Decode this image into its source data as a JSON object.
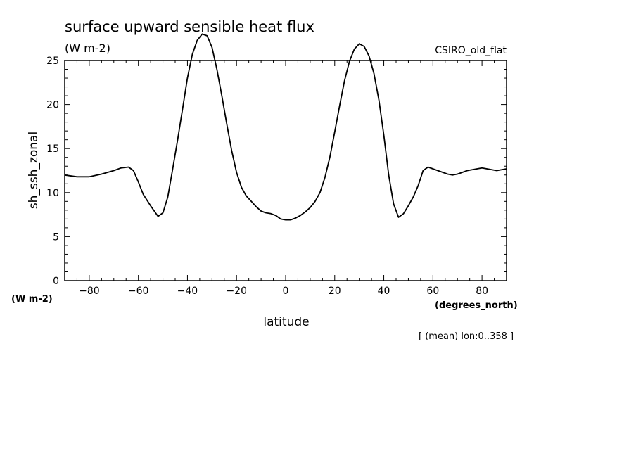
{
  "chart_data": {
    "type": "line",
    "title": "surface upward sensible heat flux",
    "subtitle": "(W m-2)",
    "model_label": "CSIRO_old_flat",
    "xlabel": "latitude",
    "x_units": "(degrees_north)",
    "ylabel": "sh_ssh_zonal",
    "y_units": "(W m-2)",
    "footnote": "[ (mean) lon:0..358 ]",
    "xlim": [
      -90,
      90
    ],
    "ylim": [
      0,
      25
    ],
    "x_ticks": [
      -80,
      -60,
      -40,
      -20,
      0,
      20,
      40,
      60,
      80
    ],
    "x_tick_labels": [
      "−80",
      "−60",
      "−40",
      "−20",
      "0",
      "20",
      "40",
      "60",
      "80"
    ],
    "y_ticks": [
      0,
      5,
      10,
      15,
      20,
      25
    ],
    "y_tick_labels": [
      "0",
      "5",
      "10",
      "15",
      "20",
      "25"
    ],
    "grid": false,
    "series": [
      {
        "x": [
          -90,
          -85,
          -80,
          -75,
          -70,
          -67,
          -64,
          -62,
          -60,
          -58,
          -55,
          -52,
          -50,
          -48,
          -46,
          -44,
          -42,
          -40,
          -38,
          -36,
          -34,
          -32,
          -30,
          -28,
          -26,
          -24,
          -22,
          -20,
          -18,
          -16,
          -14,
          -12,
          -10,
          -8,
          -6,
          -4,
          -2,
          0,
          2,
          4,
          6,
          8,
          10,
          12,
          14,
          16,
          18,
          20,
          22,
          24,
          26,
          28,
          30,
          32,
          34,
          36,
          38,
          40,
          42,
          44,
          46,
          48,
          50,
          52,
          54,
          56,
          58,
          60,
          62,
          64,
          66,
          68,
          70,
          72,
          74,
          76,
          78,
          80,
          82,
          84,
          86,
          88,
          90
        ],
        "y": [
          12.0,
          11.8,
          11.8,
          12.1,
          12.5,
          12.8,
          12.9,
          12.5,
          11.2,
          9.8,
          8.5,
          7.3,
          7.7,
          9.5,
          12.7,
          16.0,
          19.5,
          23.0,
          25.7,
          27.3,
          28.0,
          27.8,
          26.5,
          24.0,
          21.0,
          17.8,
          14.8,
          12.3,
          10.6,
          9.6,
          9.0,
          8.4,
          7.9,
          7.7,
          7.6,
          7.4,
          7.0,
          6.9,
          6.9,
          7.1,
          7.4,
          7.8,
          8.3,
          9.0,
          10.0,
          11.7,
          14.0,
          16.9,
          19.9,
          22.7,
          24.9,
          26.3,
          26.9,
          26.6,
          25.5,
          23.5,
          20.5,
          16.5,
          12.0,
          8.7,
          7.2,
          7.6,
          8.5,
          9.5,
          10.8,
          12.5,
          12.9,
          12.7,
          12.5,
          12.3,
          12.1,
          12.0,
          12.1,
          12.3,
          12.5,
          12.6,
          12.7,
          12.8,
          12.7,
          12.6,
          12.5,
          12.6,
          12.7
        ]
      }
    ]
  }
}
